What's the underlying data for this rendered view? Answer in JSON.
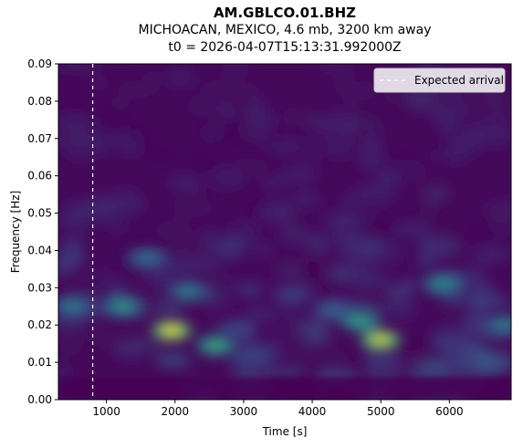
{
  "chart_data": {
    "type": "heatmap",
    "title": "AM.GBLCO.01.BHZ",
    "subtitle_line1": "MICHOACAN, MEXICO, 4.6 mb, 3200 km away",
    "subtitle_line2": "t0 = 2026-04-07T15:13:31.992000Z",
    "xlabel": "Time [s]",
    "ylabel": "Frequency [Hz]",
    "xlim": [
      300,
      6900
    ],
    "ylim": [
      0,
      0.09
    ],
    "x_ticks": [
      "1000",
      "2000",
      "3000",
      "4000",
      "5000",
      "6000"
    ],
    "x_tick_values": [
      1000,
      2000,
      3000,
      4000,
      5000,
      6000
    ],
    "y_ticks": [
      "0.00",
      "0.01",
      "0.02",
      "0.03",
      "0.04",
      "0.05",
      "0.06",
      "0.07",
      "0.08",
      "0.09"
    ],
    "y_tick_values": [
      0,
      0.01,
      0.02,
      0.03,
      0.04,
      0.05,
      0.06,
      0.07,
      0.08,
      0.09
    ],
    "colormap": "viridis",
    "expected_arrival_time": 800,
    "legend": {
      "label": "Expected arrival",
      "placement": "top-right"
    },
    "hotspots": [
      {
        "time": 1950,
        "freq": 0.0185,
        "intensity": 1.0
      },
      {
        "time": 5000,
        "freq": 0.016,
        "intensity": 0.95
      },
      {
        "time": 4700,
        "freq": 0.021,
        "intensity": 0.6
      },
      {
        "time": 2600,
        "freq": 0.0145,
        "intensity": 0.65
      },
      {
        "time": 1250,
        "freq": 0.025,
        "intensity": 0.55
      },
      {
        "time": 5900,
        "freq": 0.031,
        "intensity": 0.5
      },
      {
        "time": 500,
        "freq": 0.025,
        "intensity": 0.45
      },
      {
        "time": 2200,
        "freq": 0.029,
        "intensity": 0.45
      },
      {
        "time": 1600,
        "freq": 0.038,
        "intensity": 0.4
      },
      {
        "time": 6800,
        "freq": 0.02,
        "intensity": 0.45
      },
      {
        "time": 4300,
        "freq": 0.024,
        "intensity": 0.35
      }
    ]
  }
}
